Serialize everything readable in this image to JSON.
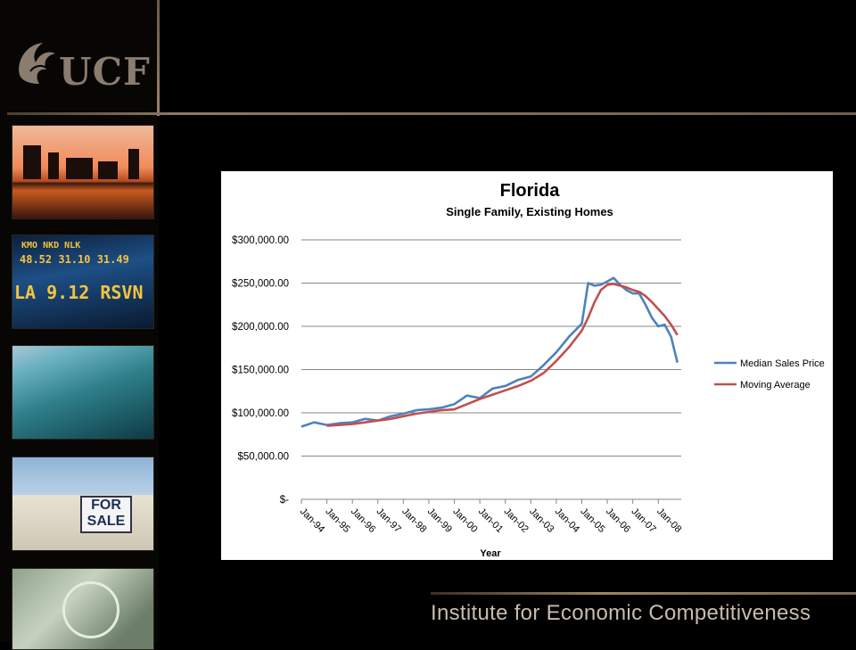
{
  "logo": {
    "text": "UCF"
  },
  "sidebar": {
    "photos": [
      {
        "name": "skyline-sunset-photo"
      },
      {
        "name": "stock-ticker-photo",
        "ticker_top": "KMO  NKD  NLK",
        "ticker_mid": "48.52  31.10  31.49",
        "ticker_bottom": "LA 9.12  RSVN"
      },
      {
        "name": "coastline-aerial-photo"
      },
      {
        "name": "for-sale-house-photo",
        "sign": "FOR SALE"
      },
      {
        "name": "dollar-bill-photo"
      }
    ]
  },
  "footer": {
    "text": "Institute for Economic Competitiveness"
  },
  "colors": {
    "median": "#4f81bd",
    "moving": "#c0504d",
    "grid": "#878787",
    "accent": "#9b8466"
  },
  "chart_data": {
    "type": "line",
    "title": "Florida",
    "subtitle": "Single Family, Existing Homes",
    "xlabel": "Year",
    "ylabel": "",
    "ylim": [
      0,
      300000
    ],
    "yticks": [
      0,
      50000,
      100000,
      150000,
      200000,
      250000,
      300000
    ],
    "ytick_labels": [
      "$-",
      "$50,000.00",
      "$100,000.00",
      "$150,000.00",
      "$200,000.00",
      "$250,000.00",
      "$300,000.00"
    ],
    "xticks": [
      "Jan-94",
      "Jan-95",
      "Jan-96",
      "Jan-97",
      "Jan-98",
      "Jan-99",
      "Jan-00",
      "Jan-01",
      "Jan-02",
      "Jan-03",
      "Jan-04",
      "Jan-05",
      "Jan-06",
      "Jan-07",
      "Jan-08"
    ],
    "grid": true,
    "legend": "right",
    "series": [
      {
        "name": "Median Sales Price",
        "color": "#4f81bd",
        "x_years": [
          1994.0,
          1994.5,
          1995.0,
          1995.5,
          1996.0,
          1996.5,
          1997.0,
          1997.5,
          1998.0,
          1998.5,
          1999.0,
          1999.5,
          2000.0,
          2000.5,
          2001.0,
          2001.5,
          2002.0,
          2002.5,
          2003.0,
          2003.5,
          2004.0,
          2004.5,
          2005.0,
          2005.25,
          2005.5,
          2005.75,
          2006.0,
          2006.25,
          2006.5,
          2006.75,
          2007.0,
          2007.25,
          2007.5,
          2007.75,
          2008.0,
          2008.25,
          2008.5,
          2008.75
        ],
        "values": [
          84000,
          89000,
          86000,
          88000,
          89000,
          93000,
          91000,
          96000,
          99000,
          103000,
          104000,
          106000,
          110000,
          120000,
          117000,
          128000,
          131000,
          138000,
          142000,
          155000,
          170000,
          188000,
          203000,
          250000,
          247000,
          248000,
          252000,
          256000,
          248000,
          242000,
          238000,
          238000,
          225000,
          210000,
          200000,
          202000,
          188000,
          158000
        ]
      },
      {
        "name": "Moving Average",
        "color": "#c0504d",
        "x_years": [
          1995.0,
          1995.5,
          1996.0,
          1996.5,
          1997.0,
          1997.5,
          1998.0,
          1998.5,
          1999.0,
          1999.5,
          2000.0,
          2000.5,
          2001.0,
          2001.5,
          2002.0,
          2002.5,
          2003.0,
          2003.5,
          2004.0,
          2004.5,
          2005.0,
          2005.25,
          2005.5,
          2005.75,
          2006.0,
          2006.25,
          2006.5,
          2006.75,
          2007.0,
          2007.25,
          2007.5,
          2007.75,
          2008.0,
          2008.25,
          2008.5,
          2008.75
        ],
        "values": [
          85000,
          86000,
          87000,
          89000,
          91000,
          93000,
          96000,
          99000,
          101000,
          103000,
          104000,
          110000,
          116000,
          121000,
          126000,
          131000,
          137000,
          146000,
          160000,
          176000,
          195000,
          210000,
          228000,
          242000,
          248000,
          249000,
          247000,
          245000,
          242000,
          240000,
          235000,
          228000,
          220000,
          212000,
          202000,
          190000
        ]
      }
    ]
  }
}
